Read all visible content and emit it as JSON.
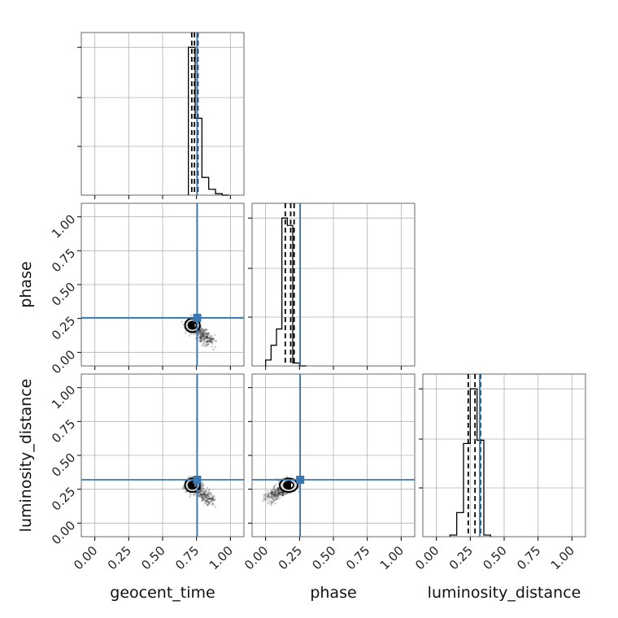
{
  "chart_data": {
    "type": "corner",
    "parameters": [
      "geocent_time",
      "phase",
      "luminosity_distance"
    ],
    "axis_labels": {
      "x": [
        "geocent_time",
        "phase",
        "luminosity_distance"
      ],
      "y": [
        "",
        "phase",
        "luminosity_distance"
      ]
    },
    "range": [
      -0.1,
      1.1
    ],
    "ticks": [
      0.0,
      0.25,
      0.5,
      0.75,
      1.0
    ],
    "tick_labels": [
      "0.00",
      "0.25",
      "0.50",
      "0.75",
      "1.00"
    ],
    "grid": true,
    "truth_values": {
      "geocent_time": 0.755,
      "phase": 0.255,
      "luminosity_distance": 0.32
    },
    "truth_color": "#3b78b0",
    "quantiles": {
      "geocent_time": [
        0.715,
        0.735,
        0.76
      ],
      "phase": [
        0.145,
        0.185,
        0.21
      ],
      "luminosity_distance": [
        0.235,
        0.285,
        0.325
      ]
    },
    "histograms": {
      "geocent_time": {
        "edges": [
          0.69,
          0.74,
          0.79,
          0.84,
          0.89,
          0.94,
          0.99
        ],
        "counts": [
          1.0,
          0.52,
          0.12,
          0.04,
          0.01,
          0.0
        ]
      },
      "phase": {
        "edges": [
          0.0,
          0.04,
          0.08,
          0.12,
          0.16,
          0.2,
          0.25,
          0.3
        ],
        "counts": [
          0.04,
          0.14,
          0.25,
          1.0,
          0.95,
          0.02,
          0.0
        ]
      },
      "luminosity_distance": {
        "edges": [
          0.1,
          0.15,
          0.2,
          0.25,
          0.3,
          0.35,
          0.4
        ],
        "counts": [
          0.01,
          0.15,
          0.58,
          0.92,
          0.6,
          0.01
        ]
      }
    },
    "joint": [
      {
        "x": "geocent_time",
        "y": "phase",
        "center": [
          0.72,
          0.2
        ],
        "spread": [
          0.05,
          0.05
        ],
        "tail_to": [
          0.85,
          0.08
        ]
      },
      {
        "x": "geocent_time",
        "y": "luminosity_distance",
        "center": [
          0.72,
          0.28
        ],
        "spread": [
          0.05,
          0.05
        ],
        "tail_to": [
          0.86,
          0.16
        ]
      },
      {
        "x": "phase",
        "y": "luminosity_distance",
        "center": [
          0.17,
          0.28
        ],
        "spread": [
          0.06,
          0.05
        ],
        "tail_to": [
          0.02,
          0.18
        ]
      }
    ]
  }
}
